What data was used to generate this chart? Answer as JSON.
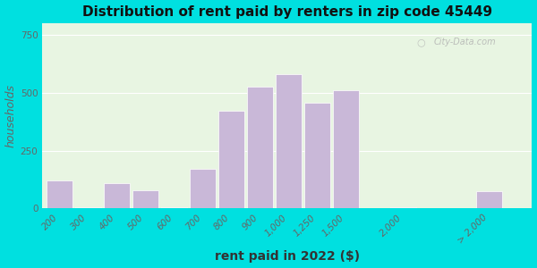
{
  "title": "Distribution of rent paid by renters in zip code 45449",
  "xlabel": "rent paid in 2022 ($)",
  "ylabel": "households",
  "bar_categories": [
    "200",
    "300",
    "400",
    "500",
    "600",
    "700",
    "800",
    "900",
    "1,000",
    "1,250",
    "1,500",
    "2,000",
    "> 2,000"
  ],
  "bar_values": [
    120,
    5,
    110,
    78,
    5,
    170,
    420,
    525,
    580,
    455,
    510,
    5,
    75
  ],
  "x_positions": [
    0,
    1,
    2,
    3,
    4,
    5,
    6,
    7,
    8,
    9,
    10,
    12,
    15
  ],
  "bar_width": 0.9,
  "bar_color": "#c9b8d8",
  "yticks": [
    0,
    250,
    500,
    750
  ],
  "ylim": [
    0,
    800
  ],
  "xlim": [
    -0.6,
    16.5
  ],
  "bg_outer": "#00e0e0",
  "bg_plot": "#e8f5e2",
  "watermark": "City-Data.com",
  "title_fontsize": 11,
  "axis_label_fontsize": 9,
  "tick_fontsize": 7.5
}
